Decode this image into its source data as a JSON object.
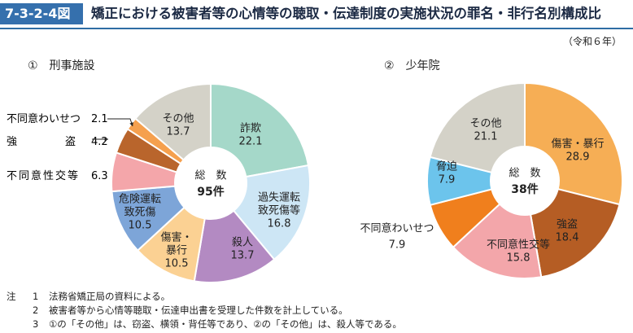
{
  "figure": {
    "number": "7-3-2-4図",
    "title": "矯正における被害者等の心情等の聴取・伝達制度の実施状況の罪名・非行名別構成比",
    "year_note": "（令和６年）"
  },
  "chart_data": [
    {
      "type": "pie",
      "donut": true,
      "title": "①　刑事施設",
      "center_label": "総　数",
      "center_value": "95件",
      "slices": [
        {
          "name": "詐欺",
          "value": 22.1,
          "color": "#a5d8c9",
          "label_lines": [
            "詐欺",
            "22.1"
          ],
          "label_inside": true
        },
        {
          "name": "過失運転致死傷等",
          "value": 16.8,
          "color": "#cde6f5",
          "label_lines": [
            "過失運転",
            "致死傷等",
            "16.8"
          ],
          "label_inside": true
        },
        {
          "name": "殺人",
          "value": 13.7,
          "color": "#b38ac2",
          "label_lines": [
            "殺人",
            "13.7"
          ],
          "label_inside": true
        },
        {
          "name": "傷害・暴行",
          "value": 10.5,
          "color": "#fbd193",
          "label_lines": [
            "傷害・",
            "暴行",
            "10.5"
          ],
          "label_inside": true
        },
        {
          "name": "危険運転致死傷",
          "value": 10.5,
          "color": "#7da5d8",
          "label_lines": [
            "危険運転",
            "致死傷",
            "10.5"
          ],
          "label_inside": true
        },
        {
          "name": "不同意性交等",
          "value": 6.3,
          "color": "#f4a6aa",
          "label_lines": [
            "不同意性交等",
            "6.3"
          ],
          "label_inside": false
        },
        {
          "name": "強盗",
          "value": 4.2,
          "color": "#b9652c",
          "label_lines": [
            "強",
            "盗",
            "4.2"
          ],
          "label_inside": false
        },
        {
          "name": "不同意わいせつ",
          "value": 2.1,
          "color": "#f5a04e",
          "label_lines": [
            "不同意わいせつ",
            "2.1"
          ],
          "label_inside": false
        },
        {
          "name": "その他",
          "value": 13.7,
          "color": "#d4d2c8",
          "label_lines": [
            "その他",
            "13.7"
          ],
          "label_inside": true
        }
      ]
    },
    {
      "type": "pie",
      "donut": true,
      "title": "②　少年院",
      "center_label": "総　数",
      "center_value": "38件",
      "slices": [
        {
          "name": "傷害・暴行",
          "value": 28.9,
          "color": "#f6ae55",
          "label_lines": [
            "傷害・暴行",
            "28.9"
          ],
          "label_inside": true
        },
        {
          "name": "強盗",
          "value": 18.4,
          "color": "#b55d24",
          "label_lines": [
            "強盗",
            "18.4"
          ],
          "label_inside": true
        },
        {
          "name": "不同意性交等",
          "value": 15.8,
          "color": "#f3a6aa",
          "label_lines": [
            "不同意性交等",
            "15.8"
          ],
          "label_inside": true
        },
        {
          "name": "不同意わいせつ",
          "value": 7.9,
          "color": "#f07f1d",
          "label_lines": [
            "不同意わいせつ",
            "7.9"
          ],
          "label_inside": false
        },
        {
          "name": "脅迫",
          "value": 7.9,
          "color": "#6cc4ec",
          "label_lines": [
            "脅迫",
            "7.9"
          ],
          "label_inside": true
        },
        {
          "name": "その他",
          "value": 21.1,
          "color": "#d4d2c8",
          "label_lines": [
            "その他",
            "21.1"
          ],
          "label_inside": true
        }
      ]
    }
  ],
  "notes": {
    "label": "注",
    "items": [
      {
        "num": "1",
        "text": "法務省矯正局の資料による。"
      },
      {
        "num": "2",
        "text": "被害者等から心情等聴取・伝達申出書を受理した件数を計上している。"
      },
      {
        "num": "3",
        "text": "①の「その他」は、窃盗、横領・背任等であり、②の「その他」は、殺人等である。"
      }
    ]
  }
}
